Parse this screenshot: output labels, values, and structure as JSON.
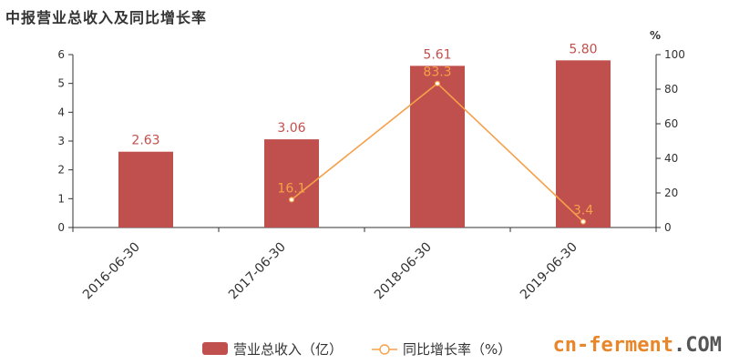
{
  "title": "中报营业总收入及同比增长率",
  "watermark": {
    "text_a": "cn-ferment",
    "text_b": ".COM"
  },
  "chart_data": {
    "type": "bar",
    "categories": [
      "2016-06-30",
      "2017-06-30",
      "2018-06-30",
      "2019-06-30"
    ],
    "series": [
      {
        "name": "营业总收入（亿）",
        "type": "bar",
        "axis": "left",
        "color": "#c0504d",
        "values": [
          2.63,
          3.06,
          5.61,
          5.8
        ],
        "labels": [
          "2.63",
          "3.06",
          "5.61",
          "5.80"
        ]
      },
      {
        "name": "同比增长率（%）",
        "type": "line",
        "axis": "right",
        "color": "#f5a04a",
        "values": [
          null,
          16.1,
          83.3,
          3.4
        ],
        "labels": [
          "",
          "16.1",
          "83.3",
          "3.4"
        ]
      }
    ],
    "y_left": {
      "min": 0,
      "max": 6,
      "ticks": [
        0,
        1,
        2,
        3,
        4,
        5,
        6
      ]
    },
    "y_right": {
      "min": 0,
      "max": 100,
      "ticks": [
        0,
        20,
        40,
        60,
        80,
        100
      ],
      "unit": "%"
    },
    "legend_position": "bottom"
  }
}
